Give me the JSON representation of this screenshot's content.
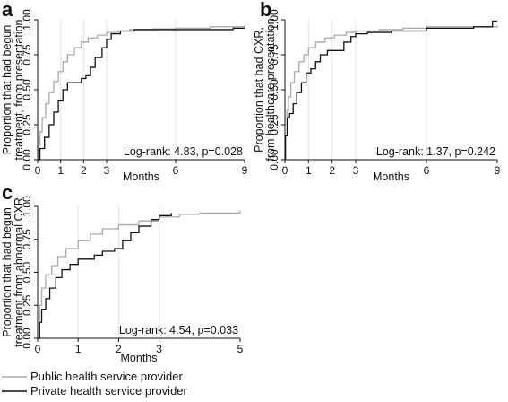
{
  "legend": [
    {
      "label": "Public health service provider",
      "color": "#a9a9a9"
    },
    {
      "label": "Private health service provider",
      "color": "#111111"
    }
  ],
  "chart_data": [
    {
      "panel": "a",
      "type": "line",
      "step": true,
      "ylabel": "Proportion that had begun\ntreatment, from presentation",
      "xlabel": "Months",
      "xticks": [
        0,
        1,
        2,
        3,
        6,
        9
      ],
      "yticks": [
        "0.00",
        "0.25",
        "0.50",
        "0.75",
        "1.00"
      ],
      "xlim": [
        0,
        9
      ],
      "ylim": [
        0,
        1
      ],
      "grid": "vertical",
      "annotation": "Log-rank: 4.83, p=0.028",
      "series": [
        {
          "name": "Public health service provider",
          "color": "#a9a9a9",
          "x": [
            0,
            0.05,
            0.1,
            0.2,
            0.35,
            0.5,
            0.7,
            0.9,
            1.1,
            1.3,
            1.6,
            1.9,
            2.2,
            2.6,
            3.0,
            3.5,
            4.0,
            5.0,
            6.0,
            7.5,
            9.0
          ],
          "y": [
            0,
            0.1,
            0.2,
            0.3,
            0.4,
            0.48,
            0.56,
            0.63,
            0.7,
            0.75,
            0.8,
            0.84,
            0.87,
            0.89,
            0.91,
            0.92,
            0.93,
            0.935,
            0.94,
            0.95,
            0.96
          ]
        },
        {
          "name": "Private health service provider",
          "color": "#111111",
          "x": [
            0,
            0.1,
            0.3,
            0.5,
            0.7,
            0.9,
            1.1,
            1.3,
            1.6,
            1.9,
            2.1,
            2.3,
            2.5,
            2.8,
            3.0,
            3.2,
            3.6,
            4.2,
            5.0,
            6.0,
            8.5,
            9.0
          ],
          "y": [
            0,
            0.08,
            0.16,
            0.25,
            0.34,
            0.42,
            0.5,
            0.55,
            0.55,
            0.58,
            0.6,
            0.66,
            0.73,
            0.8,
            0.86,
            0.9,
            0.92,
            0.93,
            0.93,
            0.93,
            0.94,
            0.94
          ]
        }
      ]
    },
    {
      "panel": "b",
      "type": "line",
      "step": true,
      "ylabel": "Proportion that had CXR,\nfrom healthcare presentation",
      "xlabel": "Months",
      "xticks": [
        0,
        1,
        2,
        3,
        6,
        9
      ],
      "yticks": [
        "0.00",
        "0.25",
        "0.50",
        "0.75",
        "1.00"
      ],
      "xlim": [
        0,
        9
      ],
      "ylim": [
        0,
        1
      ],
      "grid": "vertical",
      "annotation": "Log-rank: 1.37, p=0.242",
      "series": [
        {
          "name": "Public health service provider",
          "color": "#a9a9a9",
          "x": [
            0,
            0.03,
            0.08,
            0.15,
            0.25,
            0.4,
            0.6,
            0.8,
            1.0,
            1.3,
            1.7,
            2.1,
            2.6,
            3.0,
            4.0,
            5.0,
            6.0,
            9.0
          ],
          "y": [
            0,
            0.25,
            0.35,
            0.45,
            0.55,
            0.63,
            0.7,
            0.75,
            0.8,
            0.84,
            0.87,
            0.89,
            0.91,
            0.92,
            0.93,
            0.94,
            0.95,
            0.96
          ]
        },
        {
          "name": "Private health service provider",
          "color": "#111111",
          "x": [
            0,
            0.02,
            0.1,
            0.2,
            0.35,
            0.5,
            0.7,
            0.9,
            1.1,
            1.3,
            1.5,
            1.8,
            2.1,
            2.5,
            2.8,
            3.0,
            3.5,
            4.5,
            6.0,
            8.0,
            8.8,
            9.0
          ],
          "y": [
            0,
            0.17,
            0.3,
            0.33,
            0.4,
            0.48,
            0.55,
            0.62,
            0.65,
            0.7,
            0.75,
            0.78,
            0.78,
            0.84,
            0.88,
            0.9,
            0.91,
            0.92,
            0.94,
            0.95,
            0.99,
            0.99
          ]
        }
      ]
    },
    {
      "panel": "c",
      "type": "line",
      "step": true,
      "ylabel": "Proportion that had begun\ntreatment from abnormal CXR",
      "xlabel": "Months",
      "xticks": [
        0,
        1,
        2,
        3,
        5
      ],
      "yticks": [
        "0.00",
        "0.25",
        "0.50",
        "0.75",
        "1.00"
      ],
      "xlim": [
        0,
        5
      ],
      "ylim": [
        0,
        1
      ],
      "grid": "vertical",
      "annotation": "Log-rank: 4.54, p=0.033",
      "series": [
        {
          "name": "Public health service provider",
          "color": "#a9a9a9",
          "x": [
            0,
            0.02,
            0.05,
            0.1,
            0.2,
            0.35,
            0.5,
            0.7,
            1.0,
            1.3,
            1.6,
            2.0,
            2.5,
            3.0,
            3.5,
            4.0,
            5.0
          ],
          "y": [
            0,
            0.12,
            0.25,
            0.38,
            0.48,
            0.55,
            0.62,
            0.68,
            0.74,
            0.79,
            0.83,
            0.86,
            0.89,
            0.92,
            0.94,
            0.95,
            0.97
          ]
        },
        {
          "name": "Private health service provider",
          "color": "#111111",
          "x": [
            0,
            0.05,
            0.1,
            0.2,
            0.3,
            0.45,
            0.6,
            0.8,
            1.0,
            1.2,
            1.4,
            1.6,
            1.9,
            2.1,
            2.3,
            2.5,
            2.8,
            3.0,
            3.3
          ],
          "y": [
            0,
            0.12,
            0.22,
            0.3,
            0.38,
            0.46,
            0.52,
            0.56,
            0.6,
            0.6,
            0.63,
            0.66,
            0.68,
            0.74,
            0.8,
            0.85,
            0.9,
            0.93,
            0.95
          ]
        }
      ]
    }
  ]
}
